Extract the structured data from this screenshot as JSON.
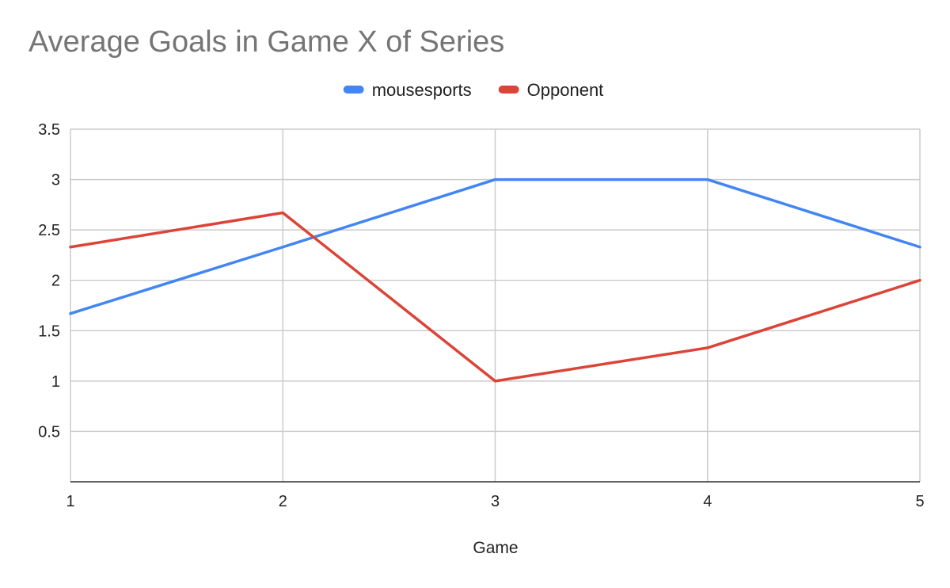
{
  "chart_data": {
    "type": "line",
    "title": "Average Goals in Game X of Series",
    "xlabel": "Game",
    "ylabel": "",
    "categories": [
      "1",
      "2",
      "3",
      "4",
      "5"
    ],
    "x": [
      1,
      2,
      3,
      4,
      5
    ],
    "xlim": [
      1,
      5
    ],
    "ylim": [
      0,
      3.5
    ],
    "yticks": [
      "0.5",
      "1",
      "1.5",
      "2",
      "2.5",
      "3",
      "3.5"
    ],
    "ytick_values": [
      0.5,
      1,
      1.5,
      2,
      2.5,
      3,
      3.5
    ],
    "grid": true,
    "legend_position": "top-center",
    "series": [
      {
        "name": "mousesports",
        "color": "#4285f4",
        "values": [
          1.67,
          2.33,
          3,
          3,
          2.33
        ]
      },
      {
        "name": "Opponent",
        "color": "#db4437",
        "values": [
          2.33,
          2.67,
          1,
          1.33,
          2
        ]
      }
    ]
  }
}
